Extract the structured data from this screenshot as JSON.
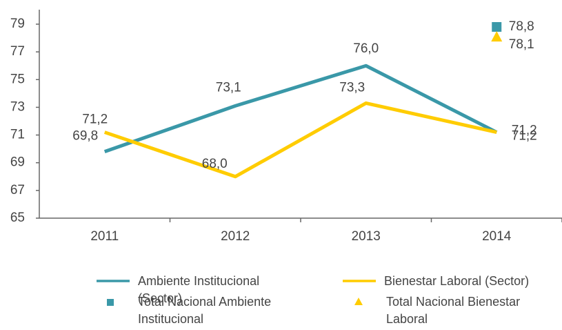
{
  "chart_data": {
    "type": "line",
    "categories": [
      "2011",
      "2012",
      "2013",
      "2014"
    ],
    "series": [
      {
        "name": "Ambiente Institucional (Sector)",
        "color": "#3a98a8",
        "style": "line",
        "values": [
          69.8,
          73.1,
          76.0,
          71.2
        ],
        "value_labels": [
          "69,8",
          "73,1",
          "76,0",
          "71,2"
        ]
      },
      {
        "name": "Bienestar Laboral (Sector)",
        "color": "#ffcc00",
        "style": "line",
        "values": [
          71.2,
          68.0,
          73.3,
          71.2
        ],
        "value_labels": [
          "71,2",
          "68,0",
          "73,3",
          "71,2"
        ]
      },
      {
        "name": "Total Nacional Ambiente Institucional",
        "color": "#3a98a8",
        "style": "square",
        "values": [
          null,
          null,
          null,
          78.8
        ],
        "value_labels": [
          null,
          null,
          null,
          "78,8"
        ]
      },
      {
        "name": "Total Nacional Bienestar Laboral",
        "color": "#ffcc00",
        "style": "triangle",
        "values": [
          null,
          null,
          null,
          78.1
        ],
        "value_labels": [
          null,
          null,
          null,
          "78,1"
        ]
      }
    ],
    "ylim": [
      65,
      79
    ],
    "yticks": [
      65,
      67,
      69,
      71,
      73,
      75,
      77,
      79
    ]
  }
}
